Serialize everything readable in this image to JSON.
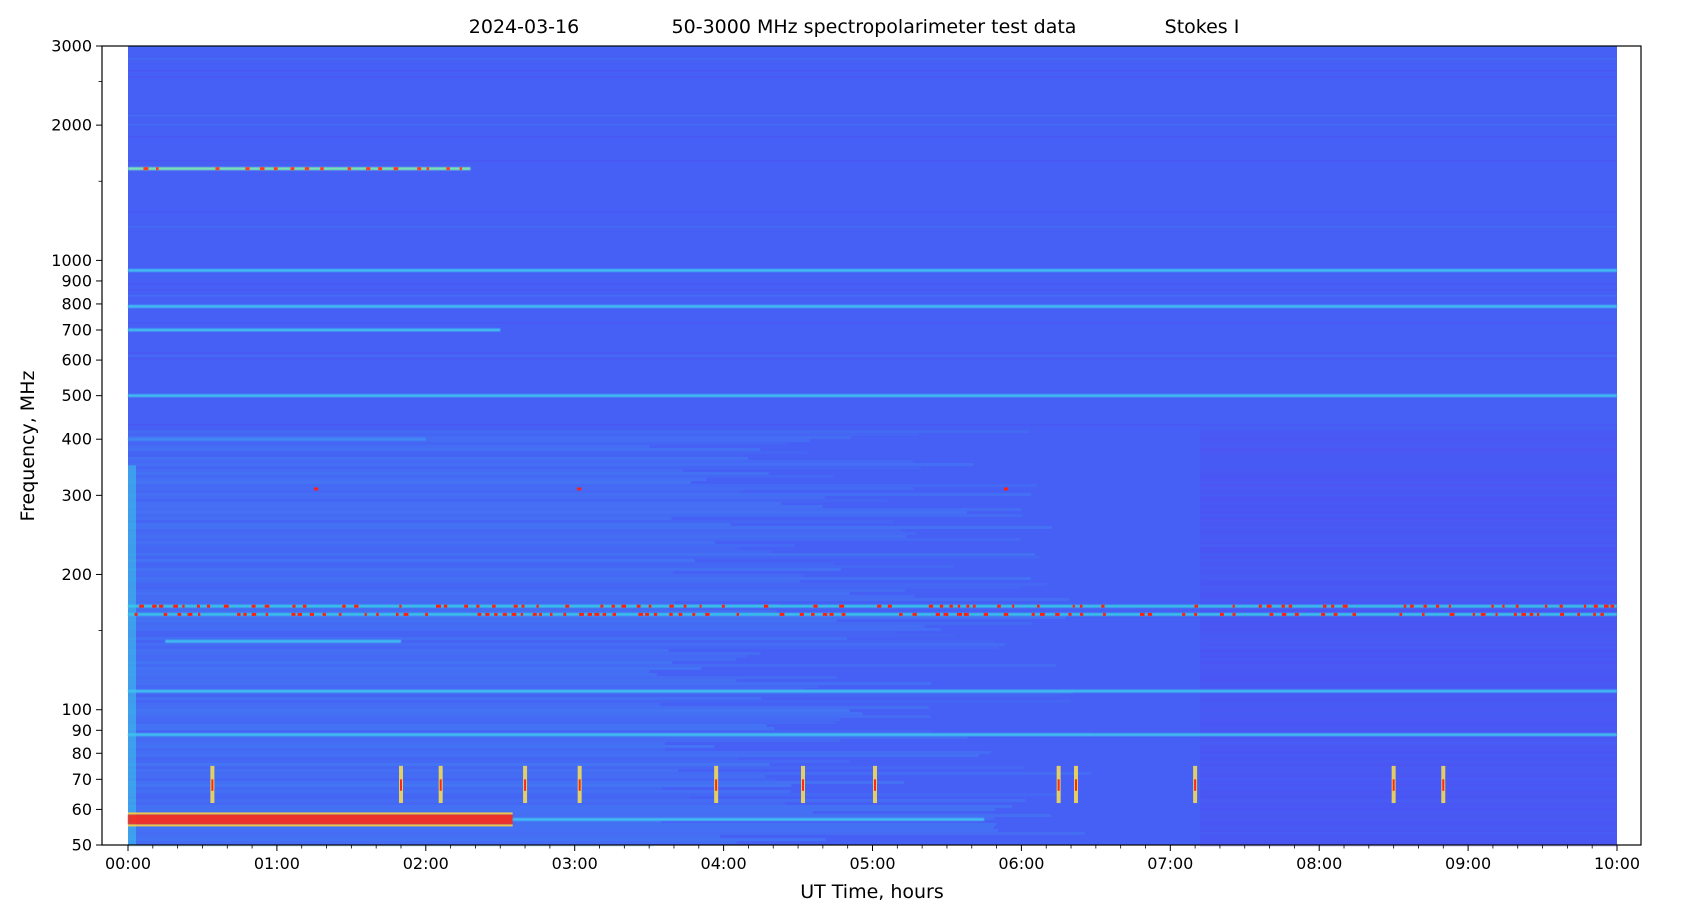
{
  "chart_data": {
    "type": "heatmap",
    "title_parts": [
      "2024-03-16",
      "50-3000 MHz spectropolarimeter test data",
      "Stokes I"
    ],
    "xlabel": "UT Time, hours",
    "ylabel": "Frequency, MHz",
    "x_scale": "linear",
    "y_scale": "log",
    "xlim": [
      "00:00",
      "10:00"
    ],
    "ylim": [
      50,
      3000
    ],
    "data_extent": {
      "t_start": "00:00",
      "t_end": "10:00"
    },
    "x_ticks": [
      "00:00",
      "01:00",
      "02:00",
      "03:00",
      "04:00",
      "05:00",
      "06:00",
      "07:00",
      "08:00",
      "09:00",
      "10:00"
    ],
    "y_major_ticks": [
      50,
      60,
      70,
      80,
      90,
      100,
      200,
      300,
      400,
      500,
      600,
      700,
      800,
      900,
      1000,
      2000,
      3000
    ],
    "y_tick_labels": [
      "50",
      "60",
      "70",
      "80",
      "90",
      "100",
      "200",
      "300",
      "400",
      "500",
      "600",
      "700",
      "800",
      "900",
      "1000",
      "2000",
      "3000"
    ],
    "y_minor_ticks": [
      150,
      1500,
      2500
    ],
    "grid": false,
    "colormap": "rainbow",
    "background_color": "#4660f5",
    "features": [
      {
        "kind": "line",
        "f": 1600,
        "t0": "00:00",
        "t1": "02:18",
        "level": "high"
      },
      {
        "kind": "line",
        "f": 950,
        "t0": "00:00",
        "t1": "10:00",
        "level": "mid"
      },
      {
        "kind": "line",
        "f": 790,
        "t0": "00:00",
        "t1": "10:00",
        "level": "mid"
      },
      {
        "kind": "line",
        "f": 700,
        "t0": "00:00",
        "t1": "02:30",
        "level": "mid"
      },
      {
        "kind": "line",
        "f": 500,
        "t0": "00:00",
        "t1": "10:00",
        "level": "mid"
      },
      {
        "kind": "line",
        "f": 400,
        "t0": "00:00",
        "t1": "02:00",
        "level": "low"
      },
      {
        "kind": "line",
        "f": 170,
        "t0": "00:00",
        "t1": "10:00",
        "level": "dotted-high"
      },
      {
        "kind": "line",
        "f": 163,
        "t0": "00:00",
        "t1": "10:00",
        "level": "dotted-high"
      },
      {
        "kind": "line",
        "f": 142,
        "t0": "00:15",
        "t1": "01:50",
        "level": "mid"
      },
      {
        "kind": "line",
        "f": 110,
        "t0": "00:00",
        "t1": "10:00",
        "level": "mid"
      },
      {
        "kind": "line",
        "f": 88,
        "t0": "00:00",
        "t1": "10:00",
        "level": "mid"
      },
      {
        "kind": "line",
        "f": 57,
        "t0": "00:00",
        "t1": "02:35",
        "level": "max"
      },
      {
        "kind": "line",
        "f": 57,
        "t0": "02:35",
        "t1": "05:45",
        "level": "mid"
      }
    ]
  }
}
